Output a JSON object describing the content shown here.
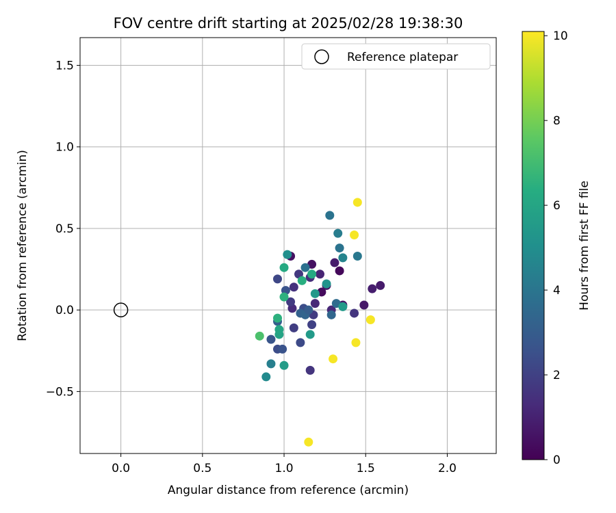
{
  "chart_data": {
    "type": "scatter",
    "title": "FOV centre drift starting at 2025/02/28 19:38:30",
    "xlabel": "Angular distance from reference (arcmin)",
    "ylabel": "Rotation from reference (arcmin)",
    "xlim": [
      -0.25,
      2.3
    ],
    "ylim": [
      -0.88,
      1.67
    ],
    "xticks": [
      "0.0",
      "0.5",
      "1.0",
      "1.5",
      "2.0"
    ],
    "xtick_values": [
      0.0,
      0.5,
      1.0,
      1.5,
      2.0
    ],
    "yticks": [
      "−0.5",
      "0.0",
      "0.5",
      "1.0",
      "1.5"
    ],
    "ytick_values": [
      -0.5,
      0.0,
      0.5,
      1.0,
      1.5
    ],
    "grid": true,
    "legend_position": "top-right",
    "reference": {
      "name": "Reference platepar",
      "x": 0.0,
      "y": 0.0,
      "marker": "open-circle"
    },
    "colorbar": {
      "label": "Hours from first FF file",
      "min": 0,
      "max": 10.1,
      "ticks": [
        "0",
        "2",
        "4",
        "6",
        "8",
        "10"
      ],
      "tick_values": [
        0,
        2,
        4,
        6,
        8,
        10
      ],
      "colormap": "viridis"
    },
    "points": [
      {
        "x": 1.04,
        "y": 0.33,
        "c": 0.5
      },
      {
        "x": 1.17,
        "y": 0.28,
        "c": 0.5
      },
      {
        "x": 1.34,
        "y": 0.24,
        "c": 0.2
      },
      {
        "x": 1.31,
        "y": 0.29,
        "c": 0.8
      },
      {
        "x": 1.23,
        "y": 0.11,
        "c": 0.3
      },
      {
        "x": 1.26,
        "y": 0.15,
        "c": 0.6
      },
      {
        "x": 1.36,
        "y": 0.03,
        "c": 0.6
      },
      {
        "x": 1.49,
        "y": 0.03,
        "c": 0.7
      },
      {
        "x": 1.54,
        "y": 0.13,
        "c": 0.9
      },
      {
        "x": 1.59,
        "y": 0.15,
        "c": 0.8
      },
      {
        "x": 1.43,
        "y": -0.02,
        "c": 1.6
      },
      {
        "x": 1.29,
        "y": 0.0,
        "c": 1.2
      },
      {
        "x": 1.22,
        "y": 0.22,
        "c": 1.1
      },
      {
        "x": 1.16,
        "y": 0.2,
        "c": 1.4
      },
      {
        "x": 1.06,
        "y": 0.14,
        "c": 1.5
      },
      {
        "x": 1.09,
        "y": 0.22,
        "c": 1.7
      },
      {
        "x": 1.19,
        "y": 0.04,
        "c": 1.2
      },
      {
        "x": 1.18,
        "y": -0.03,
        "c": 1.8
      },
      {
        "x": 1.05,
        "y": 0.01,
        "c": 1.3
      },
      {
        "x": 1.04,
        "y": 0.05,
        "c": 1.8
      },
      {
        "x": 1.06,
        "y": -0.11,
        "c": 1.9
      },
      {
        "x": 1.17,
        "y": -0.09,
        "c": 2.0
      },
      {
        "x": 1.16,
        "y": -0.37,
        "c": 1.6
      },
      {
        "x": 1.1,
        "y": -0.2,
        "c": 2.3
      },
      {
        "x": 0.96,
        "y": 0.19,
        "c": 2.2
      },
      {
        "x": 1.01,
        "y": 0.12,
        "c": 2.6
      },
      {
        "x": 1.12,
        "y": 0.01,
        "c": 2.4
      },
      {
        "x": 0.96,
        "y": -0.24,
        "c": 2.4
      },
      {
        "x": 0.99,
        "y": -0.24,
        "c": 2.6
      },
      {
        "x": 0.92,
        "y": -0.18,
        "c": 2.7
      },
      {
        "x": 0.96,
        "y": -0.07,
        "c": 3.1
      },
      {
        "x": 1.1,
        "y": -0.02,
        "c": 3.2
      },
      {
        "x": 1.13,
        "y": -0.03,
        "c": 3.3
      },
      {
        "x": 1.15,
        "y": 0.0,
        "c": 3.0
      },
      {
        "x": 1.29,
        "y": -0.03,
        "c": 3.4
      },
      {
        "x": 1.32,
        "y": 0.04,
        "c": 3.6
      },
      {
        "x": 1.13,
        "y": 0.26,
        "c": 3.8
      },
      {
        "x": 1.28,
        "y": 0.58,
        "c": 3.9
      },
      {
        "x": 1.34,
        "y": 0.38,
        "c": 3.9
      },
      {
        "x": 1.45,
        "y": 0.33,
        "c": 4.1
      },
      {
        "x": 1.33,
        "y": 0.47,
        "c": 4.3
      },
      {
        "x": 1.36,
        "y": 0.32,
        "c": 4.6
      },
      {
        "x": 0.92,
        "y": -0.33,
        "c": 4.4
      },
      {
        "x": 0.89,
        "y": -0.41,
        "c": 4.8
      },
      {
        "x": 1.02,
        "y": 0.34,
        "c": 5.0
      },
      {
        "x": 1.26,
        "y": 0.16,
        "c": 5.2
      },
      {
        "x": 1.19,
        "y": 0.1,
        "c": 5.4
      },
      {
        "x": 1.16,
        "y": -0.15,
        "c": 5.5
      },
      {
        "x": 1.0,
        "y": -0.34,
        "c": 5.6
      },
      {
        "x": 1.36,
        "y": 0.02,
        "c": 5.5
      },
      {
        "x": 0.97,
        "y": -0.15,
        "c": 5.9
      },
      {
        "x": 0.97,
        "y": -0.12,
        "c": 6.0
      },
      {
        "x": 1.0,
        "y": 0.26,
        "c": 6.2
      },
      {
        "x": 1.17,
        "y": 0.22,
        "c": 6.2
      },
      {
        "x": 1.11,
        "y": 0.18,
        "c": 6.4
      },
      {
        "x": 1.0,
        "y": 0.08,
        "c": 6.5
      },
      {
        "x": 0.96,
        "y": -0.05,
        "c": 6.5
      },
      {
        "x": 0.85,
        "y": -0.16,
        "c": 7.2
      },
      {
        "x": 1.45,
        "y": 0.66,
        "c": 10.0
      },
      {
        "x": 1.43,
        "y": 0.46,
        "c": 10.0
      },
      {
        "x": 1.53,
        "y": -0.06,
        "c": 10.0
      },
      {
        "x": 1.44,
        "y": -0.2,
        "c": 10.0
      },
      {
        "x": 1.3,
        "y": -0.3,
        "c": 10.0
      },
      {
        "x": 1.15,
        "y": -0.81,
        "c": 10.0
      }
    ]
  }
}
